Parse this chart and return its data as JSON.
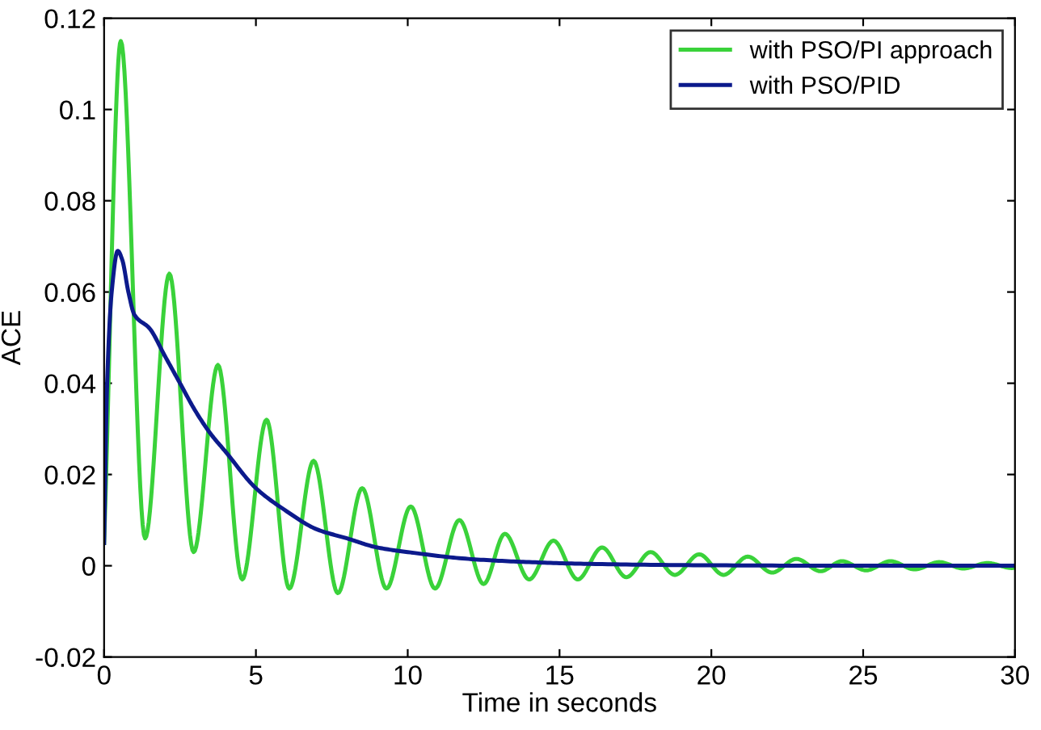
{
  "chart_data": {
    "type": "line",
    "xlabel": "Time in seconds",
    "ylabel": "ACE",
    "xlim": [
      0,
      30
    ],
    "ylim": [
      -0.02,
      0.12
    ],
    "xticks": [
      0,
      5,
      10,
      15,
      20,
      25,
      30
    ],
    "yticks": [
      -0.02,
      0,
      0.02,
      0.04,
      0.06,
      0.08,
      0.1,
      0.12
    ],
    "grid": false,
    "legend": "top right",
    "marker": "none",
    "line_style": "solid",
    "series": [
      {
        "name": "with PSO/PI approach",
        "color": "#3ad23a",
        "x": [
          0,
          0.55,
          1.35,
          2.15,
          2.95,
          3.75,
          4.55,
          5.35,
          6.1,
          6.9,
          7.7,
          8.5,
          9.3,
          10.1,
          10.9,
          11.7,
          12.5,
          13.2,
          14.0,
          14.8,
          15.6,
          16.4,
          17.2,
          18.0,
          18.8,
          19.6,
          20.4,
          21.2,
          22.0,
          22.8,
          23.6,
          24.3,
          25.1,
          25.9,
          26.7,
          27.5,
          28.3,
          29.1,
          29.9,
          30
        ],
        "values": [
          0.005,
          0.115,
          0.006,
          0.064,
          0.003,
          0.044,
          -0.003,
          0.032,
          -0.005,
          0.023,
          -0.006,
          0.017,
          -0.005,
          0.013,
          -0.005,
          0.01,
          -0.004,
          0.007,
          -0.003,
          0.0055,
          -0.003,
          0.004,
          -0.0025,
          0.003,
          -0.002,
          0.0025,
          -0.002,
          0.002,
          -0.0015,
          0.0015,
          -0.0012,
          0.001,
          -0.001,
          0.001,
          -0.0008,
          0.0008,
          -0.0006,
          0.0006,
          -0.0005,
          -0.0004
        ]
      },
      {
        "name": "with PSO/PID",
        "color": "#0c1a8c",
        "x": [
          0,
          0.1,
          0.25,
          0.45,
          0.6,
          0.8,
          1.0,
          1.5,
          2,
          2.5,
          3,
          3.5,
          4,
          5,
          6,
          7,
          8,
          9,
          10,
          12,
          14,
          16,
          20,
          25,
          30
        ],
        "values": [
          0.005,
          0.04,
          0.06,
          0.069,
          0.067,
          0.06,
          0.055,
          0.052,
          0.046,
          0.04,
          0.034,
          0.029,
          0.025,
          0.017,
          0.012,
          0.008,
          0.006,
          0.004,
          0.003,
          0.0015,
          0.0008,
          0.0004,
          0.0001,
          0,
          0
        ]
      }
    ]
  }
}
